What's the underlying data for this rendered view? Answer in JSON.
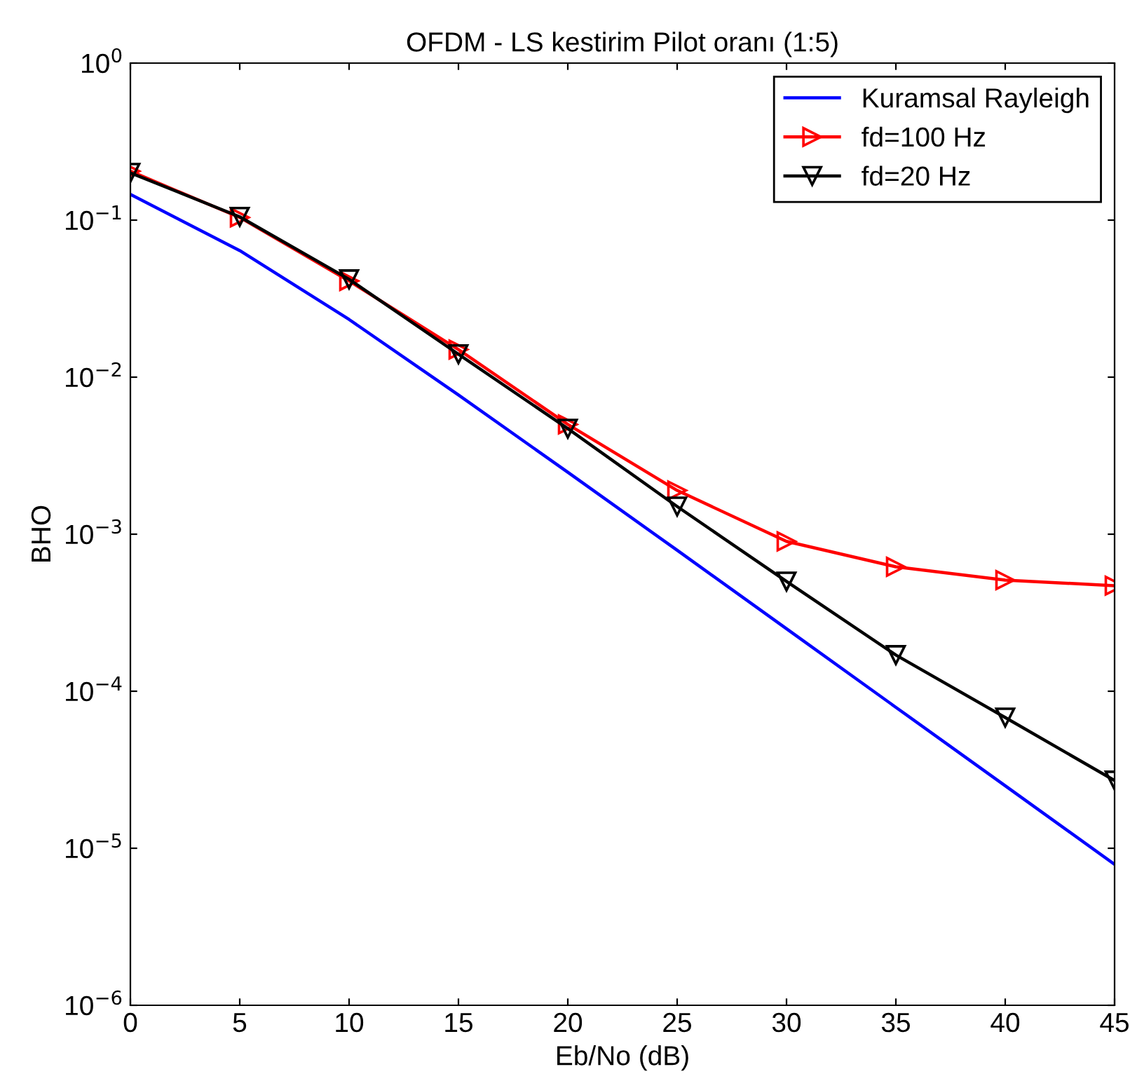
{
  "chart_data": {
    "type": "line",
    "title": "OFDM - LS kestirim Pilot oranı (1:5)",
    "xlabel": "Eb/No (dB)",
    "ylabel": "BHO",
    "x": [
      0,
      5,
      10,
      15,
      20,
      25,
      30,
      35,
      40,
      45
    ],
    "series": [
      {
        "name": "Kuramsal Rayleigh",
        "color": "#0000ff",
        "marker": "none",
        "values": [
          0.146,
          0.064,
          0.0233,
          0.0077,
          0.00248,
          0.00079,
          0.00025,
          7.9e-05,
          2.5e-05,
          7.9e-06
        ]
      },
      {
        "name": "fd=100 Hz",
        "color": "#ff0000",
        "marker": "triangle",
        "values": [
          0.205,
          0.104,
          0.041,
          0.015,
          0.005,
          0.0019,
          0.0009,
          0.00062,
          0.00051,
          0.00047
        ]
      },
      {
        "name": "fd=20 Hz",
        "color": "#000000",
        "marker": "triangle",
        "values": [
          0.2,
          0.105,
          0.042,
          0.014,
          0.0047,
          0.0015,
          0.0005,
          0.00017,
          6.8e-05,
          2.7e-05
        ]
      }
    ],
    "log": "y",
    "xlim": [
      0,
      45
    ],
    "ylim": [
      1e-06,
      1
    ],
    "xticks": [
      0,
      5,
      10,
      15,
      20,
      25,
      30,
      35,
      40,
      45
    ],
    "yticks": [
      {
        "value": 1e-06,
        "label": "10$^{−6}$"
      },
      {
        "value": 1e-05,
        "label": "10$^{−5}$"
      },
      {
        "value": 0.0001,
        "label": "10$^{−4}$"
      },
      {
        "value": 0.001,
        "label": "10$^{−3}$"
      },
      {
        "value": 0.01,
        "label": "10$^{−2}$"
      },
      {
        "value": 0.1,
        "label": "10$^{−1}$"
      },
      {
        "value": 1,
        "label": "10$^{0}$"
      }
    ],
    "grid": false,
    "legend": "top right",
    "line_style": "solid"
  }
}
